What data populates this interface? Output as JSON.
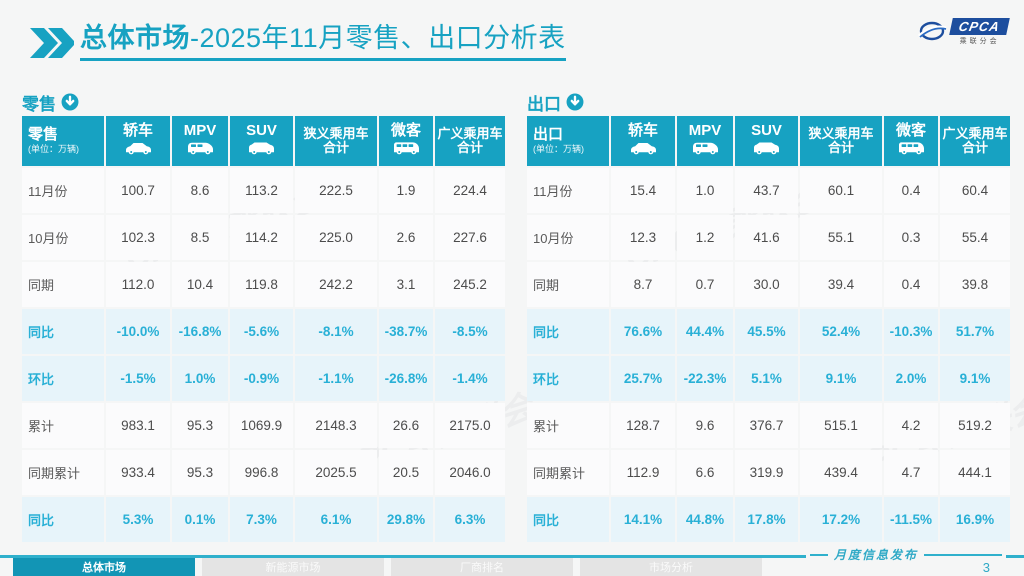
{
  "header": {
    "title_bold": "总体市场",
    "title_rest": "-2025年11月零售、出口分析表",
    "logo": {
      "name": "CPCA",
      "subtext": "乘联分会"
    }
  },
  "tables": [
    {
      "section_label": "零售",
      "corner_title": "零售",
      "corner_unit": "(单位：万辆)",
      "columns": [
        {
          "label": "轿车",
          "icon": "sedan-icon"
        },
        {
          "label": "MPV",
          "icon": "mpv-icon"
        },
        {
          "label": "SUV",
          "icon": "suv-icon"
        },
        {
          "label": "狭义乘用车合计",
          "line1": "狭义乘用车",
          "line2": "合计",
          "icon": null
        },
        {
          "label": "微客",
          "icon": "minibus-icon"
        },
        {
          "label": "广义乘用车合计",
          "line1": "广义乘用车",
          "line2": "合计",
          "icon": null
        }
      ],
      "rows": [
        {
          "label": "11月份",
          "highlight": false,
          "values": [
            "100.7",
            "8.6",
            "113.2",
            "222.5",
            "1.9",
            "224.4"
          ]
        },
        {
          "label": "10月份",
          "highlight": false,
          "values": [
            "102.3",
            "8.5",
            "114.2",
            "225.0",
            "2.6",
            "227.6"
          ]
        },
        {
          "label": "同期",
          "highlight": false,
          "values": [
            "112.0",
            "10.4",
            "119.8",
            "242.2",
            "3.1",
            "245.2"
          ]
        },
        {
          "label": "同比",
          "highlight": true,
          "values": [
            "-10.0%",
            "-16.8%",
            "-5.6%",
            "-8.1%",
            "-38.7%",
            "-8.5%"
          ]
        },
        {
          "label": "环比",
          "highlight": true,
          "values": [
            "-1.5%",
            "1.0%",
            "-0.9%",
            "-1.1%",
            "-26.8%",
            "-1.4%"
          ]
        },
        {
          "label": "累计",
          "highlight": false,
          "values": [
            "983.1",
            "95.3",
            "1069.9",
            "2148.3",
            "26.6",
            "2175.0"
          ]
        },
        {
          "label": "同期累计",
          "highlight": false,
          "values": [
            "933.4",
            "95.3",
            "996.8",
            "2025.5",
            "20.5",
            "2046.0"
          ]
        },
        {
          "label": "同比",
          "highlight": true,
          "values": [
            "5.3%",
            "0.1%",
            "7.3%",
            "6.1%",
            "29.8%",
            "6.3%"
          ]
        }
      ]
    },
    {
      "section_label": "出口",
      "corner_title": "出口",
      "corner_unit": "(单位：万辆)",
      "columns": [
        {
          "label": "轿车",
          "icon": "sedan-icon"
        },
        {
          "label": "MPV",
          "icon": "mpv-icon"
        },
        {
          "label": "SUV",
          "icon": "suv-icon"
        },
        {
          "label": "狭义乘用车合计",
          "line1": "狭义乘用车",
          "line2": "合计",
          "icon": null
        },
        {
          "label": "微客",
          "icon": "minibus-icon"
        },
        {
          "label": "广义乘用车合计",
          "line1": "广义乘用车",
          "line2": "合计",
          "icon": null
        }
      ],
      "rows": [
        {
          "label": "11月份",
          "highlight": false,
          "values": [
            "15.4",
            "1.0",
            "43.7",
            "60.1",
            "0.4",
            "60.4"
          ]
        },
        {
          "label": "10月份",
          "highlight": false,
          "values": [
            "12.3",
            "1.2",
            "41.6",
            "55.1",
            "0.3",
            "55.4"
          ]
        },
        {
          "label": "同期",
          "highlight": false,
          "values": [
            "8.7",
            "0.7",
            "30.0",
            "39.4",
            "0.4",
            "39.8"
          ]
        },
        {
          "label": "同比",
          "highlight": true,
          "values": [
            "76.6%",
            "44.4%",
            "45.5%",
            "52.4%",
            "-10.3%",
            "51.7%"
          ]
        },
        {
          "label": "环比",
          "highlight": true,
          "values": [
            "25.7%",
            "-22.3%",
            "5.1%",
            "9.1%",
            "2.0%",
            "9.1%"
          ]
        },
        {
          "label": "累计",
          "highlight": false,
          "values": [
            "128.7",
            "9.6",
            "376.7",
            "515.1",
            "4.2",
            "519.2"
          ]
        },
        {
          "label": "同期累计",
          "highlight": false,
          "values": [
            "112.9",
            "6.6",
            "319.9",
            "439.4",
            "4.7",
            "444.1"
          ]
        },
        {
          "label": "同比",
          "highlight": true,
          "values": [
            "14.1%",
            "44.8%",
            "17.8%",
            "17.2%",
            "-11.5%",
            "16.9%"
          ]
        }
      ]
    }
  ],
  "footer": {
    "tabs": [
      {
        "label": "总体市场",
        "active": true
      },
      {
        "label": "新能源市场",
        "active": false
      },
      {
        "label": "厂商排名",
        "active": false
      },
      {
        "label": "市场分析",
        "active": false
      }
    ],
    "publication": "月度信息发布",
    "page_number": "3"
  },
  "colors": {
    "teal_header": "#17a2c2",
    "highlight_text": "#29b0d6",
    "highlight_bg": "#e7f4fa",
    "footer_tab_active": "#1295b5"
  }
}
